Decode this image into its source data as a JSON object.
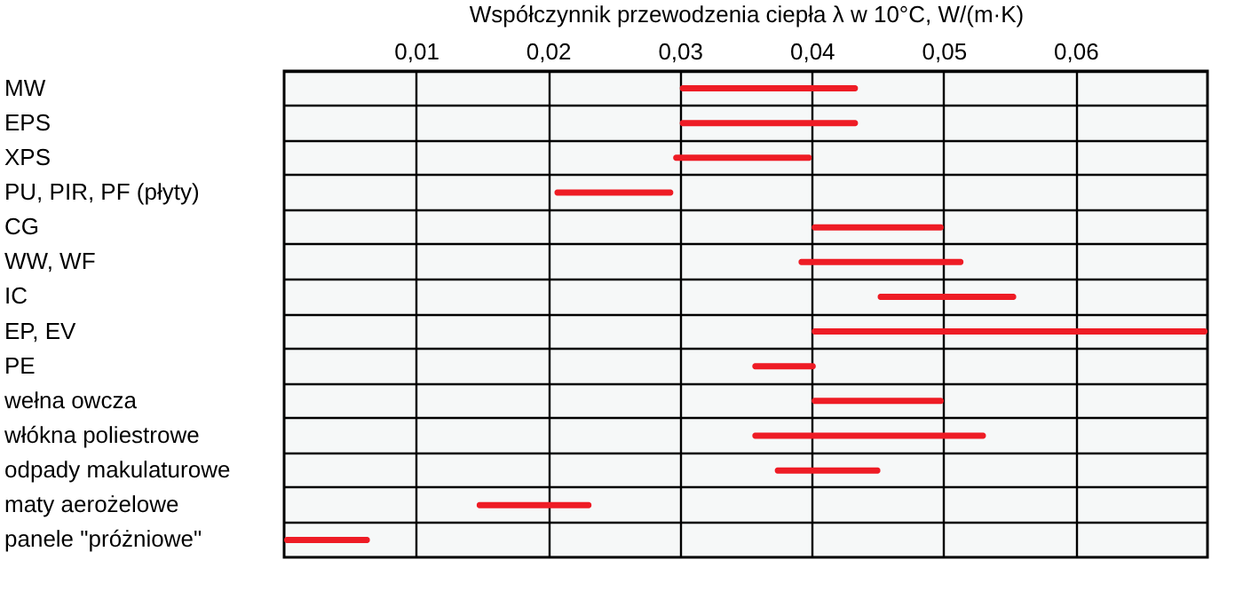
{
  "chart_data": {
    "type": "bar",
    "orientation": "horizontal",
    "xlabel": "Współczynnik przewodzenia ciepła λ w 10°C, W/(m·K)",
    "categories": [
      "MW",
      "EPS",
      "XPS",
      "PU, PIR, PF (płyty)",
      "CG",
      "WW, WF",
      "IC",
      "EP, EV",
      "PE",
      "wełna owcza",
      "włókna poliestrowe",
      "odpady makulaturowe",
      "maty aerożelowe",
      "panele \"próżniowe\""
    ],
    "base": [
      0.03,
      0.03,
      0.0295,
      0.0205,
      0.04,
      0.039,
      0.045,
      0.04,
      0.0355,
      0.04,
      0.0355,
      0.0372,
      0.0146,
      0.0
    ],
    "values": [
      0.0135,
      0.0135,
      0.0105,
      0.009,
      0.01,
      0.0125,
      0.0105,
      0.03,
      0.0048,
      0.01,
      0.0177,
      0.008,
      0.0087,
      0.0065
    ],
    "color": "#ee1c25",
    "xlim": [
      0,
      0.07
    ],
    "xticks": [
      {
        "value": 0.01,
        "label": "0,01"
      },
      {
        "value": 0.02,
        "label": "0,02"
      },
      {
        "value": 0.03,
        "label": "0,03"
      },
      {
        "value": 0.04,
        "label": "0,04"
      },
      {
        "value": 0.05,
        "label": "0,05"
      },
      {
        "value": 0.06,
        "label": "0,06"
      }
    ],
    "grid": true
  }
}
